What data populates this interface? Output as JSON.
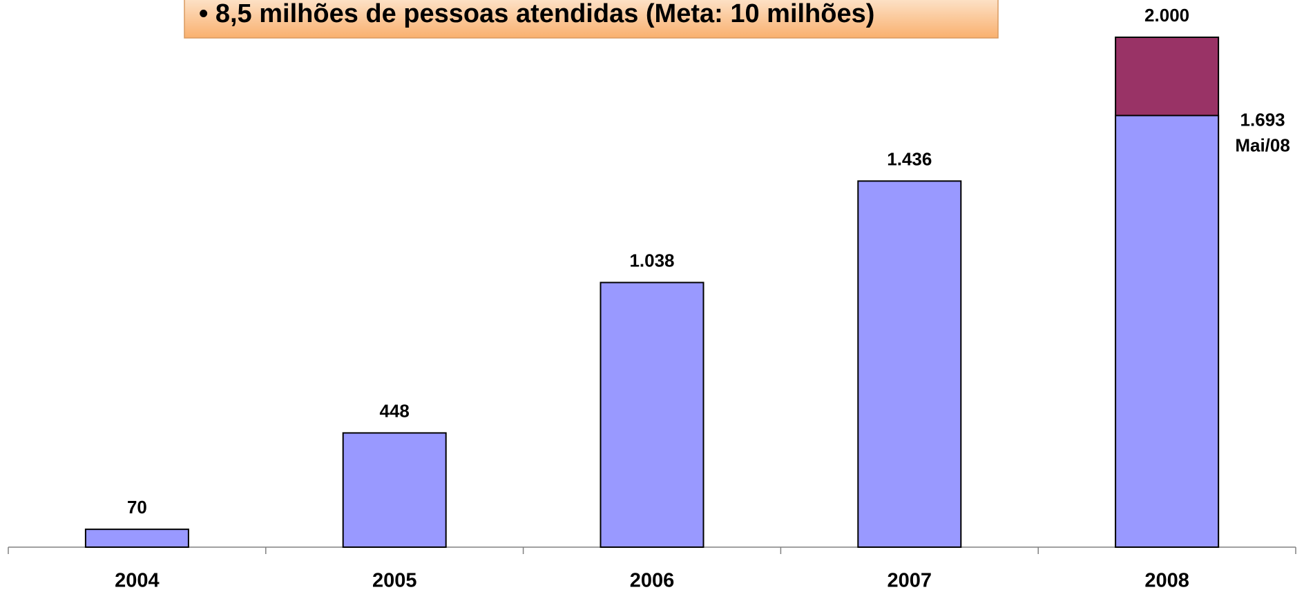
{
  "chart_data": {
    "type": "bar",
    "title": "• 8,5 milhões de pessoas atendidas (Meta: 10 milhões)",
    "categories": [
      "2004",
      "2005",
      "2006",
      "2007",
      "2008"
    ],
    "series": [
      {
        "color": "#9999ff",
        "values": [
          70,
          448,
          1038,
          1436,
          1693
        ],
        "value_labels": [
          "70",
          "448",
          "1.038",
          "1.436",
          "1.693"
        ]
      },
      {
        "color": "#993366",
        "values": [
          null,
          null,
          null,
          null,
          2000
        ],
        "value_labels": [
          null,
          null,
          null,
          null,
          "2.000"
        ]
      }
    ],
    "annotation": "Mai/08",
    "ylim": [
      0,
      2000
    ]
  }
}
